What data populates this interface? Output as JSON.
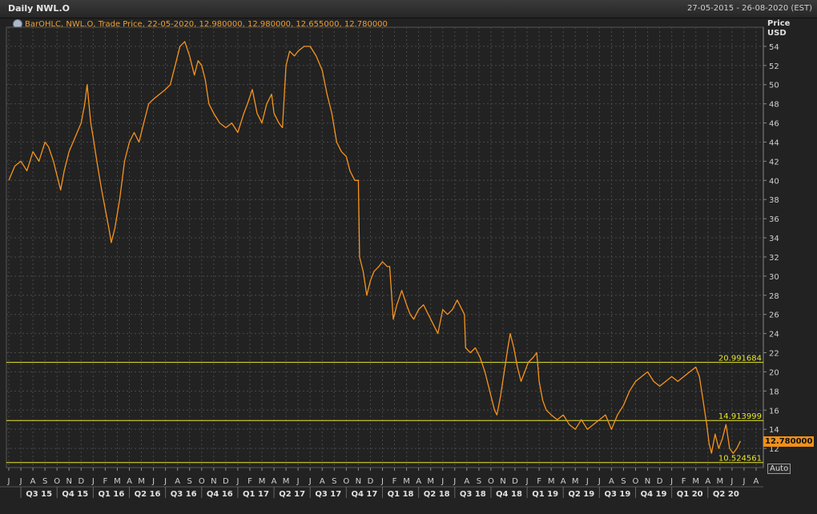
{
  "header": {
    "title": "Daily NWL.O",
    "date_range": "27-05-2015 - 26-08-2020 (EST)"
  },
  "legend": {
    "text": "BarOHLC, NWL.O, Trade Price, 22-05-2020, 12.980000, 12.980000, 12.655000, 12.780000"
  },
  "axis": {
    "price_label": "Price",
    "currency_label": "USD",
    "last_price": "12.780000",
    "auto_label": "Auto"
  },
  "colors": {
    "background": "#222222",
    "series": "#f7941d",
    "reference_lines": "#e6e62a",
    "grid": "#4a4a4a",
    "text": "#d0d0d0"
  },
  "chart_data": {
    "type": "line",
    "x_unit": "months since 2015-06-01",
    "ylim": [
      10,
      56
    ],
    "ytick_values": [
      12,
      14,
      16,
      18,
      20,
      22,
      24,
      26,
      28,
      30,
      32,
      34,
      36,
      38,
      40,
      42,
      44,
      46,
      48,
      50,
      52,
      54
    ],
    "ytick_labels": [
      "12",
      "14",
      "16",
      "18",
      "20",
      "22",
      "24",
      "26",
      "28",
      "30",
      "32",
      "34",
      "36",
      "38",
      "40",
      "42",
      "44",
      "46",
      "48",
      "50",
      "52",
      "54"
    ],
    "month_labels": [
      "J",
      "J",
      "A",
      "S",
      "O",
      "N",
      "D",
      "J",
      "F",
      "M",
      "A",
      "M",
      "J",
      "J",
      "A",
      "S",
      "O",
      "N",
      "D",
      "J",
      "F",
      "M",
      "A",
      "M",
      "J",
      "J",
      "A",
      "S",
      "O",
      "N",
      "D",
      "J",
      "F",
      "M",
      "A",
      "M",
      "J",
      "J",
      "A",
      "S",
      "O",
      "N",
      "D",
      "J",
      "F",
      "M",
      "A",
      "M",
      "J",
      "J",
      "A",
      "S",
      "O",
      "N",
      "D",
      "J",
      "F",
      "M",
      "A",
      "M",
      "J",
      "J",
      "A"
    ],
    "quarter_labels": [
      "Q3 15",
      "Q4 15",
      "Q1 16",
      "Q2 16",
      "Q3 16",
      "Q4 16",
      "Q1 17",
      "Q2 17",
      "Q3 17",
      "Q4 17",
      "Q1 18",
      "Q2 18",
      "Q3 18",
      "Q4 18",
      "Q1 19",
      "Q2 19",
      "Q3 19",
      "Q4 19",
      "Q1 20",
      "Q2 20"
    ],
    "reference_lines": [
      {
        "value": 20.991684,
        "label": "20.991684"
      },
      {
        "value": 14.913999,
        "label": "14.913999"
      },
      {
        "value": 10.524561,
        "label": "10.524561"
      }
    ],
    "series": [
      {
        "points": [
          [
            0,
            40.0
          ],
          [
            0.5,
            41.5
          ],
          [
            1,
            42.0
          ],
          [
            1.5,
            41.0
          ],
          [
            2,
            43.0
          ],
          [
            2.5,
            42.0
          ],
          [
            3,
            44.0
          ],
          [
            3.3,
            43.5
          ],
          [
            3.7,
            42.0
          ],
          [
            4,
            40.5
          ],
          [
            4.3,
            39.0
          ],
          [
            4.6,
            41.0
          ],
          [
            5,
            43.0
          ],
          [
            5.5,
            44.5
          ],
          [
            6,
            46.0
          ],
          [
            6.3,
            48.0
          ],
          [
            6.5,
            50.0
          ],
          [
            6.8,
            46.0
          ],
          [
            7,
            44.5
          ],
          [
            7.3,
            42.0
          ],
          [
            7.7,
            39.0
          ],
          [
            8,
            37.0
          ],
          [
            8.3,
            35.0
          ],
          [
            8.5,
            33.5
          ],
          [
            8.8,
            35.0
          ],
          [
            9.2,
            38.0
          ],
          [
            9.6,
            42.0
          ],
          [
            10,
            44.0
          ],
          [
            10.4,
            45.0
          ],
          [
            10.8,
            44.0
          ],
          [
            11.2,
            46.0
          ],
          [
            11.6,
            48.0
          ],
          [
            12,
            48.5
          ],
          [
            12.5,
            49.0
          ],
          [
            13,
            49.5
          ],
          [
            13.4,
            50.0
          ],
          [
            13.8,
            52.0
          ],
          [
            14.2,
            54.0
          ],
          [
            14.6,
            54.5
          ],
          [
            15,
            53.0
          ],
          [
            15.4,
            51.0
          ],
          [
            15.7,
            52.5
          ],
          [
            16,
            52.0
          ],
          [
            16.3,
            50.5
          ],
          [
            16.6,
            48.0
          ],
          [
            17,
            47.0
          ],
          [
            17.5,
            46.0
          ],
          [
            18,
            45.5
          ],
          [
            18.5,
            46.0
          ],
          [
            19,
            45.0
          ],
          [
            19.5,
            47.0
          ],
          [
            19.8,
            48.0
          ],
          [
            20.2,
            49.5
          ],
          [
            20.6,
            47.0
          ],
          [
            21,
            46.0
          ],
          [
            21.4,
            48.0
          ],
          [
            21.8,
            49.0
          ],
          [
            22,
            47.0
          ],
          [
            22.4,
            46.0
          ],
          [
            22.7,
            45.5
          ],
          [
            23,
            52.0
          ],
          [
            23.3,
            53.5
          ],
          [
            23.7,
            53.0
          ],
          [
            24,
            53.5
          ],
          [
            24.5,
            54.0
          ],
          [
            25,
            54.0
          ],
          [
            25.5,
            53.0
          ],
          [
            26,
            51.5
          ],
          [
            26.4,
            49.0
          ],
          [
            26.8,
            47.0
          ],
          [
            27.2,
            44.0
          ],
          [
            27.6,
            43.0
          ],
          [
            28,
            42.5
          ],
          [
            28.3,
            41.0
          ],
          [
            28.7,
            40.0
          ],
          [
            29.0,
            40.0
          ],
          [
            29.1,
            32.0
          ],
          [
            29.4,
            30.5
          ],
          [
            29.7,
            28.0
          ],
          [
            30,
            29.5
          ],
          [
            30.3,
            30.5
          ],
          [
            30.7,
            31.0
          ],
          [
            31,
            31.5
          ],
          [
            31.4,
            31.0
          ],
          [
            31.6,
            31.0
          ],
          [
            31.9,
            25.5
          ],
          [
            32.2,
            27.0
          ],
          [
            32.6,
            28.5
          ],
          [
            33,
            27.0
          ],
          [
            33.3,
            26.0
          ],
          [
            33.6,
            25.5
          ],
          [
            34,
            26.5
          ],
          [
            34.4,
            27.0
          ],
          [
            34.8,
            26.0
          ],
          [
            35.2,
            25.0
          ],
          [
            35.6,
            24.0
          ],
          [
            36,
            26.5
          ],
          [
            36.4,
            26.0
          ],
          [
            36.8,
            26.5
          ],
          [
            37.2,
            27.5
          ],
          [
            37.6,
            26.5
          ],
          [
            37.8,
            26.0
          ],
          [
            37.9,
            22.5
          ],
          [
            38.3,
            22.0
          ],
          [
            38.7,
            22.5
          ],
          [
            39.1,
            21.5
          ],
          [
            39.5,
            20.0
          ],
          [
            39.9,
            18.0
          ],
          [
            40.3,
            16.0
          ],
          [
            40.5,
            15.5
          ],
          [
            40.8,
            17.5
          ],
          [
            41.1,
            20.0
          ],
          [
            41.4,
            22.5
          ],
          [
            41.6,
            24.0
          ],
          [
            41.9,
            22.5
          ],
          [
            42.2,
            20.5
          ],
          [
            42.5,
            19.0
          ],
          [
            42.8,
            20.0
          ],
          [
            43.1,
            21.0
          ],
          [
            43.5,
            21.5
          ],
          [
            43.8,
            22.0
          ],
          [
            44.0,
            19.0
          ],
          [
            44.3,
            17.0
          ],
          [
            44.6,
            16.0
          ],
          [
            45,
            15.5
          ],
          [
            45.5,
            15.0
          ],
          [
            46,
            15.5
          ],
          [
            46.5,
            14.5
          ],
          [
            47,
            14.0
          ],
          [
            47.5,
            15.0
          ],
          [
            48,
            14.0
          ],
          [
            48.5,
            14.5
          ],
          [
            49,
            15.0
          ],
          [
            49.5,
            15.5
          ],
          [
            50,
            14.0
          ],
          [
            50.5,
            15.5
          ],
          [
            51,
            16.5
          ],
          [
            51.5,
            18.0
          ],
          [
            52,
            19.0
          ],
          [
            52.5,
            19.5
          ],
          [
            53,
            20.0
          ],
          [
            53.5,
            19.0
          ],
          [
            54,
            18.5
          ],
          [
            54.5,
            19.0
          ],
          [
            55,
            19.5
          ],
          [
            55.5,
            19.0
          ],
          [
            56,
            19.5
          ],
          [
            56.5,
            20.0
          ],
          [
            57.0,
            20.5
          ],
          [
            57.3,
            19.5
          ],
          [
            57.6,
            17.0
          ],
          [
            57.9,
            14.5
          ],
          [
            58.1,
            12.5
          ],
          [
            58.3,
            11.5
          ],
          [
            58.6,
            13.5
          ],
          [
            58.9,
            12.0
          ],
          [
            59.2,
            13.0
          ],
          [
            59.5,
            14.5
          ],
          [
            59.8,
            12.0
          ],
          [
            60.1,
            11.5
          ],
          [
            60.4,
            12.0
          ],
          [
            60.7,
            12.78
          ]
        ]
      }
    ]
  }
}
